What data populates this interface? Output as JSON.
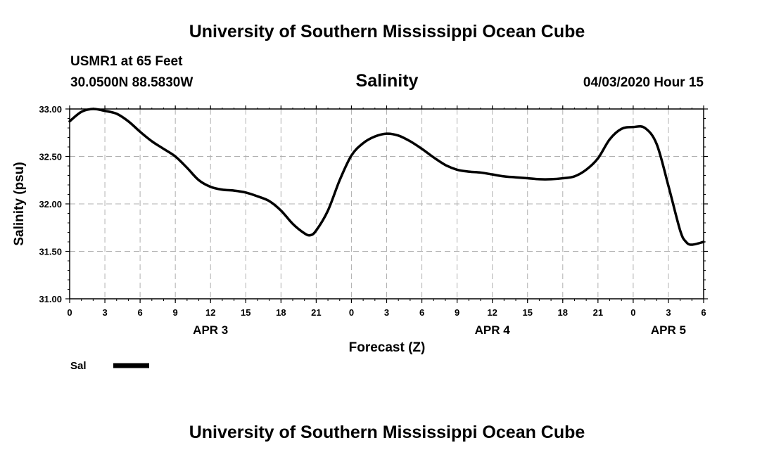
{
  "header": {
    "title_top": "University of Southern Mississippi Ocean Cube",
    "station": "USMR1 at 65 Feet",
    "coords": "30.0500N 88.5830W",
    "datetime": "04/03/2020 Hour 15",
    "title_bottom": "University of Southern Mississippi Ocean Cube"
  },
  "chart_data": {
    "type": "line",
    "title": "Salinity",
    "xlabel": "Forecast (Z)",
    "ylabel": "Salinity (psu)",
    "ylim": [
      31.0,
      33.0
    ],
    "yticks": [
      "31.00",
      "31.50",
      "32.00",
      "32.50",
      "33.00"
    ],
    "xlim": [
      0,
      54
    ],
    "xticks": [
      {
        "h": 0,
        "label": "0"
      },
      {
        "h": 3,
        "label": "3"
      },
      {
        "h": 6,
        "label": "6"
      },
      {
        "h": 9,
        "label": "9"
      },
      {
        "h": 12,
        "label": "12"
      },
      {
        "h": 15,
        "label": "15"
      },
      {
        "h": 18,
        "label": "18"
      },
      {
        "h": 21,
        "label": "21"
      },
      {
        "h": 24,
        "label": "0"
      },
      {
        "h": 27,
        "label": "3"
      },
      {
        "h": 30,
        "label": "6"
      },
      {
        "h": 33,
        "label": "9"
      },
      {
        "h": 36,
        "label": "12"
      },
      {
        "h": 39,
        "label": "15"
      },
      {
        "h": 42,
        "label": "18"
      },
      {
        "h": 45,
        "label": "21"
      },
      {
        "h": 48,
        "label": "0"
      },
      {
        "h": 51,
        "label": "3"
      },
      {
        "h": 54,
        "label": "6"
      }
    ],
    "day_labels": [
      {
        "h": 12,
        "label": "APR 3"
      },
      {
        "h": 36,
        "label": "APR 4"
      },
      {
        "h": 51,
        "label": "APR 5"
      }
    ],
    "grid": true,
    "legend": "bottom-left",
    "series": [
      {
        "name": "Sal",
        "color": "#000000",
        "x": [
          0,
          1,
          2,
          3,
          4,
          5,
          6,
          7,
          8,
          9,
          10,
          11,
          12,
          13,
          14,
          15,
          16,
          17,
          18,
          19,
          20,
          20.5,
          21,
          22,
          23,
          24,
          25,
          26,
          27,
          28,
          29,
          30,
          31,
          32,
          33,
          34,
          35,
          36,
          37,
          38,
          39,
          40,
          41,
          42,
          43,
          44,
          45,
          46,
          47,
          48,
          49,
          50,
          51,
          52,
          52.5,
          53,
          54
        ],
        "y": [
          32.87,
          32.97,
          33.0,
          32.98,
          32.95,
          32.87,
          32.76,
          32.66,
          32.58,
          32.5,
          32.38,
          32.25,
          32.18,
          32.15,
          32.14,
          32.12,
          32.08,
          32.03,
          31.93,
          31.79,
          31.69,
          31.67,
          31.72,
          31.93,
          32.25,
          32.51,
          32.64,
          32.71,
          32.74,
          32.72,
          32.66,
          32.58,
          32.49,
          32.41,
          32.36,
          32.34,
          32.33,
          32.31,
          32.29,
          32.28,
          32.27,
          32.26,
          32.26,
          32.27,
          32.29,
          32.36,
          32.48,
          32.68,
          32.79,
          32.81,
          32.8,
          32.63,
          32.19,
          31.72,
          31.6,
          31.57,
          31.6
        ]
      }
    ]
  }
}
